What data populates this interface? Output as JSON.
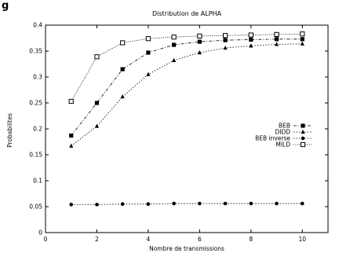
{
  "partial_header": "g",
  "chart_data": {
    "type": "line",
    "title": "Distribution de ALPHA",
    "xlabel": "Nombre de transmissions",
    "ylabel": "Probabilites",
    "xlim": [
      0,
      11
    ],
    "ylim": [
      0,
      0.4
    ],
    "xticks": [
      0,
      2,
      4,
      6,
      8,
      10
    ],
    "yticks": [
      0,
      0.05,
      0.1,
      0.15,
      0.2,
      0.25,
      0.3,
      0.35,
      0.4
    ],
    "grid": false,
    "legend_position": "center-right",
    "x": [
      1,
      2,
      3,
      4,
      5,
      6,
      7,
      8,
      9,
      10
    ],
    "series": [
      {
        "name": "BEB",
        "marker": "filled-square",
        "dash": "dash-dot",
        "values": [
          0.187,
          0.25,
          0.315,
          0.347,
          0.362,
          0.368,
          0.371,
          0.372,
          0.373,
          0.373
        ]
      },
      {
        "name": "DIDD",
        "marker": "filled-triangle",
        "dash": "dotted",
        "values": [
          0.167,
          0.205,
          0.262,
          0.305,
          0.332,
          0.347,
          0.356,
          0.36,
          0.363,
          0.364
        ]
      },
      {
        "name": "BEB inverse",
        "marker": "filled-circle",
        "dash": "dotted",
        "values": [
          0.054,
          0.054,
          0.055,
          0.055,
          0.056,
          0.056,
          0.056,
          0.056,
          0.056,
          0.056
        ]
      },
      {
        "name": "MILD",
        "marker": "open-square",
        "dash": "fine-dotted",
        "values": [
          0.253,
          0.339,
          0.366,
          0.374,
          0.377,
          0.379,
          0.38,
          0.381,
          0.382,
          0.383
        ]
      }
    ]
  }
}
